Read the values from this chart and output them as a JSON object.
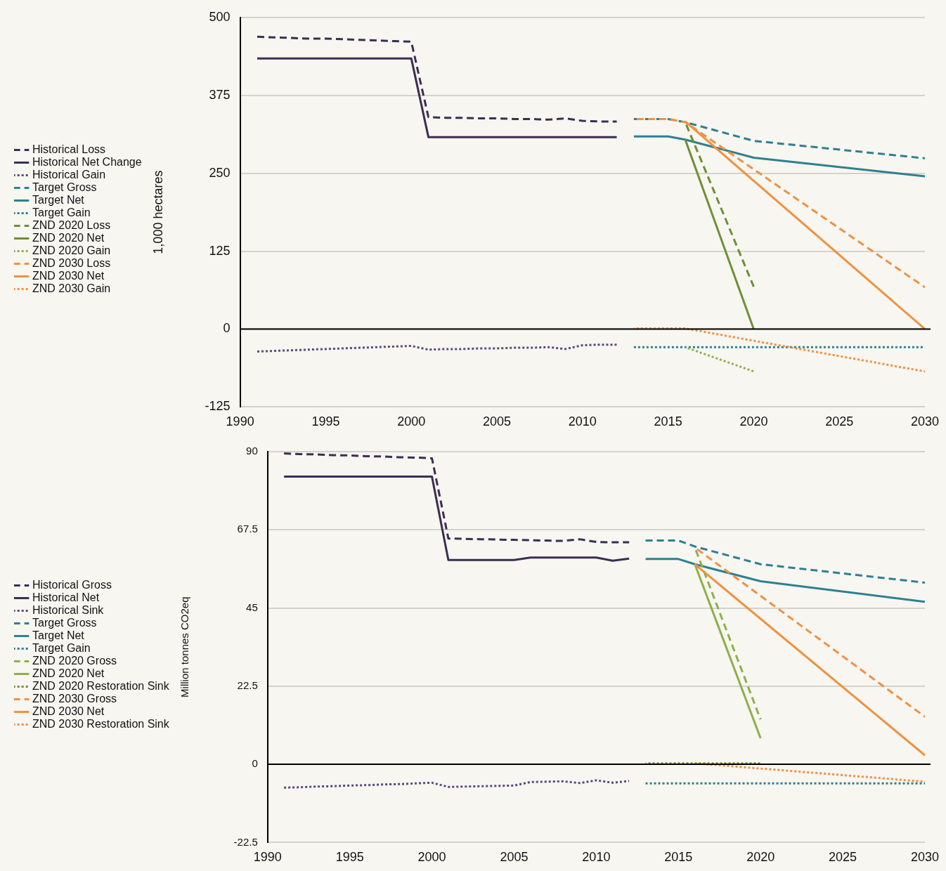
{
  "chart_data": [
    {
      "type": "line",
      "ylabel": "1,000 hectares",
      "xlim": [
        1990,
        2030
      ],
      "xticks": [
        1990,
        1995,
        2000,
        2005,
        2010,
        2015,
        2020,
        2025,
        2030
      ],
      "ylim": [
        -125,
        500
      ],
      "yticks": [
        -125,
        0,
        125,
        250,
        375,
        500
      ],
      "grid": "y",
      "legend": "left",
      "ref_lines": [
        {
          "axis": "y",
          "value": 0,
          "color": "#000000"
        }
      ],
      "series": [
        {
          "name": "Historical Loss",
          "color": "#3d2d52",
          "line_style": "dashed",
          "x": [
            1991,
            1992,
            1993,
            1994,
            1995,
            1996,
            1997,
            1998,
            1999,
            2000,
            2001,
            2002,
            2003,
            2004,
            2005,
            2006,
            2007,
            2008,
            2009,
            2010,
            2011,
            2012
          ],
          "values": [
            469,
            468,
            467,
            466,
            466,
            465,
            464,
            463,
            462,
            461,
            340,
            339,
            339,
            338,
            338,
            337,
            337,
            336,
            338,
            334,
            333,
            333
          ]
        },
        {
          "name": "Historical Net Change",
          "color": "#3d2d52",
          "line_style": "solid",
          "x": [
            1991,
            1992,
            1993,
            1994,
            1995,
            1996,
            1997,
            1998,
            1999,
            2000,
            2001,
            2002,
            2003,
            2004,
            2005,
            2006,
            2007,
            2008,
            2009,
            2010,
            2011,
            2012
          ],
          "values": [
            434,
            434,
            434,
            434,
            434,
            434,
            434,
            434,
            434,
            434,
            308,
            308,
            308,
            308,
            308,
            308,
            308,
            308,
            308,
            308,
            308,
            308
          ]
        },
        {
          "name": "Historical Gain",
          "color": "#5b4a7a",
          "line_style": "dotted",
          "x": [
            1991,
            1992,
            1993,
            1994,
            1995,
            1996,
            1997,
            1998,
            1999,
            2000,
            2001,
            2002,
            2003,
            2004,
            2005,
            2006,
            2007,
            2008,
            2009,
            2010,
            2011,
            2012
          ],
          "values": [
            -36,
            -35,
            -34,
            -33,
            -32,
            -31,
            -30,
            -29,
            -28,
            -27,
            -33,
            -32,
            -32,
            -31,
            -31,
            -30,
            -30,
            -29,
            -32,
            -26,
            -25,
            -25
          ]
        },
        {
          "name": "Target Gross",
          "color": "#2e8090",
          "line_style": "dashed",
          "x": [
            2013,
            2014,
            2015,
            2016,
            2020,
            2030
          ],
          "values": [
            337,
            337,
            337,
            332,
            302,
            274
          ]
        },
        {
          "name": "Target Net",
          "color": "#2e8090",
          "line_style": "solid",
          "x": [
            2013,
            2014,
            2015,
            2016,
            2020,
            2030
          ],
          "values": [
            309,
            309,
            309,
            304,
            275,
            245
          ]
        },
        {
          "name": "Target Gain",
          "color": "#2e8090",
          "line_style": "dotted",
          "x": [
            2013,
            2014,
            2015,
            2016,
            2020,
            2030
          ],
          "values": [
            -29,
            -29,
            -29,
            -29,
            -29,
            -29
          ]
        },
        {
          "name": "ZND 2020 Loss",
          "color": "#6e8f35",
          "line_style": "dashed",
          "x": [
            2016,
            2020
          ],
          "values": [
            332,
            68
          ]
        },
        {
          "name": "ZND 2020 Net",
          "color": "#6e8f35",
          "line_style": "solid",
          "x": [
            2016,
            2020
          ],
          "values": [
            304,
            0
          ]
        },
        {
          "name": "ZND 2020 Gain",
          "color": "#8db04a",
          "line_style": "dotted",
          "x": [
            2016,
            2020
          ],
          "values": [
            -29,
            -68
          ]
        },
        {
          "name": "ZND 2030 Loss",
          "color": "#f0913f",
          "line_style": "dashed",
          "x": [
            2013,
            2014,
            2015,
            2016,
            2030
          ],
          "values": [
            337,
            337,
            337,
            332,
            67
          ]
        },
        {
          "name": "ZND 2030 Net",
          "color": "#f0913f",
          "line_style": "solid",
          "x": [
            2016,
            2030
          ],
          "values": [
            333,
            0
          ]
        },
        {
          "name": "ZND 2030 Gain",
          "color": "#f0913f",
          "line_style": "dotted",
          "x": [
            2013,
            2014,
            2015,
            2016,
            2030
          ],
          "values": [
            1,
            1,
            1,
            1,
            -68
          ]
        }
      ]
    },
    {
      "type": "line",
      "ylabel": "Million tonnes CO2eq",
      "xlim": [
        1990,
        2030
      ],
      "xticks": [
        1990,
        1995,
        2000,
        2005,
        2010,
        2015,
        2020,
        2025,
        2030
      ],
      "ylim": [
        -22.5,
        90
      ],
      "yticks": [
        -22.5,
        0,
        22.5,
        45,
        67.5,
        90
      ],
      "grid": "y",
      "legend": "left",
      "ref_lines": [
        {
          "axis": "y",
          "value": 0,
          "color": "#000000"
        }
      ],
      "series": [
        {
          "name": "Historical Gross",
          "color": "#3d2d52",
          "line_style": "dashed",
          "x": [
            1991,
            1992,
            1993,
            1994,
            1995,
            1996,
            1997,
            1998,
            1999,
            2000,
            2001,
            2002,
            2003,
            2004,
            2005,
            2006,
            2007,
            2008,
            2009,
            2010,
            2011,
            2012
          ],
          "values": [
            89.5,
            89.3,
            89.2,
            89.0,
            88.9,
            88.7,
            88.6,
            88.4,
            88.3,
            88.1,
            65.0,
            64.9,
            64.8,
            64.7,
            64.6,
            64.5,
            64.4,
            64.3,
            64.8,
            64.0,
            63.9,
            63.9
          ]
        },
        {
          "name": "Historical Net",
          "color": "#3d2d52",
          "line_style": "solid",
          "x": [
            1991,
            1992,
            1993,
            1994,
            1995,
            1996,
            1997,
            1998,
            1999,
            2000,
            2001,
            2002,
            2003,
            2004,
            2005,
            2006,
            2007,
            2008,
            2009,
            2010,
            2011,
            2012
          ],
          "values": [
            82.8,
            82.8,
            82.8,
            82.8,
            82.8,
            82.8,
            82.8,
            82.8,
            82.8,
            82.8,
            58.8,
            58.8,
            58.8,
            58.8,
            58.8,
            59.5,
            59.5,
            59.5,
            59.5,
            59.5,
            58.6,
            59.2
          ]
        },
        {
          "name": "Historical Sink",
          "color": "#5b4a7a",
          "line_style": "dotted",
          "x": [
            1991,
            1992,
            1993,
            1994,
            1995,
            1996,
            1997,
            1998,
            1999,
            2000,
            2001,
            2002,
            2003,
            2004,
            2005,
            2006,
            2007,
            2008,
            2009,
            2010,
            2011,
            2012
          ],
          "values": [
            -6.7,
            -6.6,
            -6.4,
            -6.3,
            -6.1,
            -6.0,
            -5.8,
            -5.7,
            -5.5,
            -5.3,
            -6.5,
            -6.4,
            -6.3,
            -6.2,
            -6.1,
            -5.1,
            -5.0,
            -4.9,
            -5.4,
            -4.6,
            -5.3,
            -4.8
          ]
        },
        {
          "name": "Target Gross",
          "color": "#2e8090",
          "line_style": "dashed",
          "x": [
            2013,
            2014,
            2015,
            2016,
            2020,
            2030
          ],
          "values": [
            64.4,
            64.4,
            64.4,
            62.7,
            57.6,
            52.3
          ]
        },
        {
          "name": "Target Net",
          "color": "#2e8090",
          "line_style": "solid",
          "x": [
            2013,
            2014,
            2015,
            2016,
            2020,
            2030
          ],
          "values": [
            59.1,
            59.1,
            59.1,
            57.6,
            52.7,
            46.8
          ]
        },
        {
          "name": "Target Gain",
          "color": "#2e8090",
          "line_style": "dotted",
          "x": [
            2013,
            2014,
            2015,
            2016,
            2020,
            2030
          ],
          "values": [
            -5.5,
            -5.5,
            -5.5,
            -5.5,
            -5.5,
            -5.5
          ]
        },
        {
          "name": "ZND 2020 Gross",
          "color": "#8db04a",
          "line_style": "dashed",
          "x": [
            2016,
            2020
          ],
          "values": [
            62.4,
            12.9
          ]
        },
        {
          "name": "ZND 2020 Net",
          "color": "#8db04a",
          "line_style": "solid",
          "x": [
            2016,
            2020
          ],
          "values": [
            57.6,
            7.5
          ]
        },
        {
          "name": "ZND 2020 Restoration Sink",
          "color": "#6e8f35",
          "line_style": "dotted",
          "x": [
            2013,
            2020
          ],
          "values": [
            0.3,
            0.3
          ]
        },
        {
          "name": "ZND 2030 Gross",
          "color": "#f0913f",
          "line_style": "dashed",
          "x": [
            2016,
            2030
          ],
          "values": [
            62.4,
            13.7
          ]
        },
        {
          "name": "ZND 2030 Net",
          "color": "#f0913f",
          "line_style": "solid",
          "x": [
            2016,
            2030
          ],
          "values": [
            57.6,
            2.6
          ]
        },
        {
          "name": "ZND 2030 Restoration Sink",
          "color": "#f0913f",
          "line_style": "dotted",
          "x": [
            2016,
            2030
          ],
          "values": [
            0.3,
            -5.0
          ]
        }
      ]
    }
  ]
}
